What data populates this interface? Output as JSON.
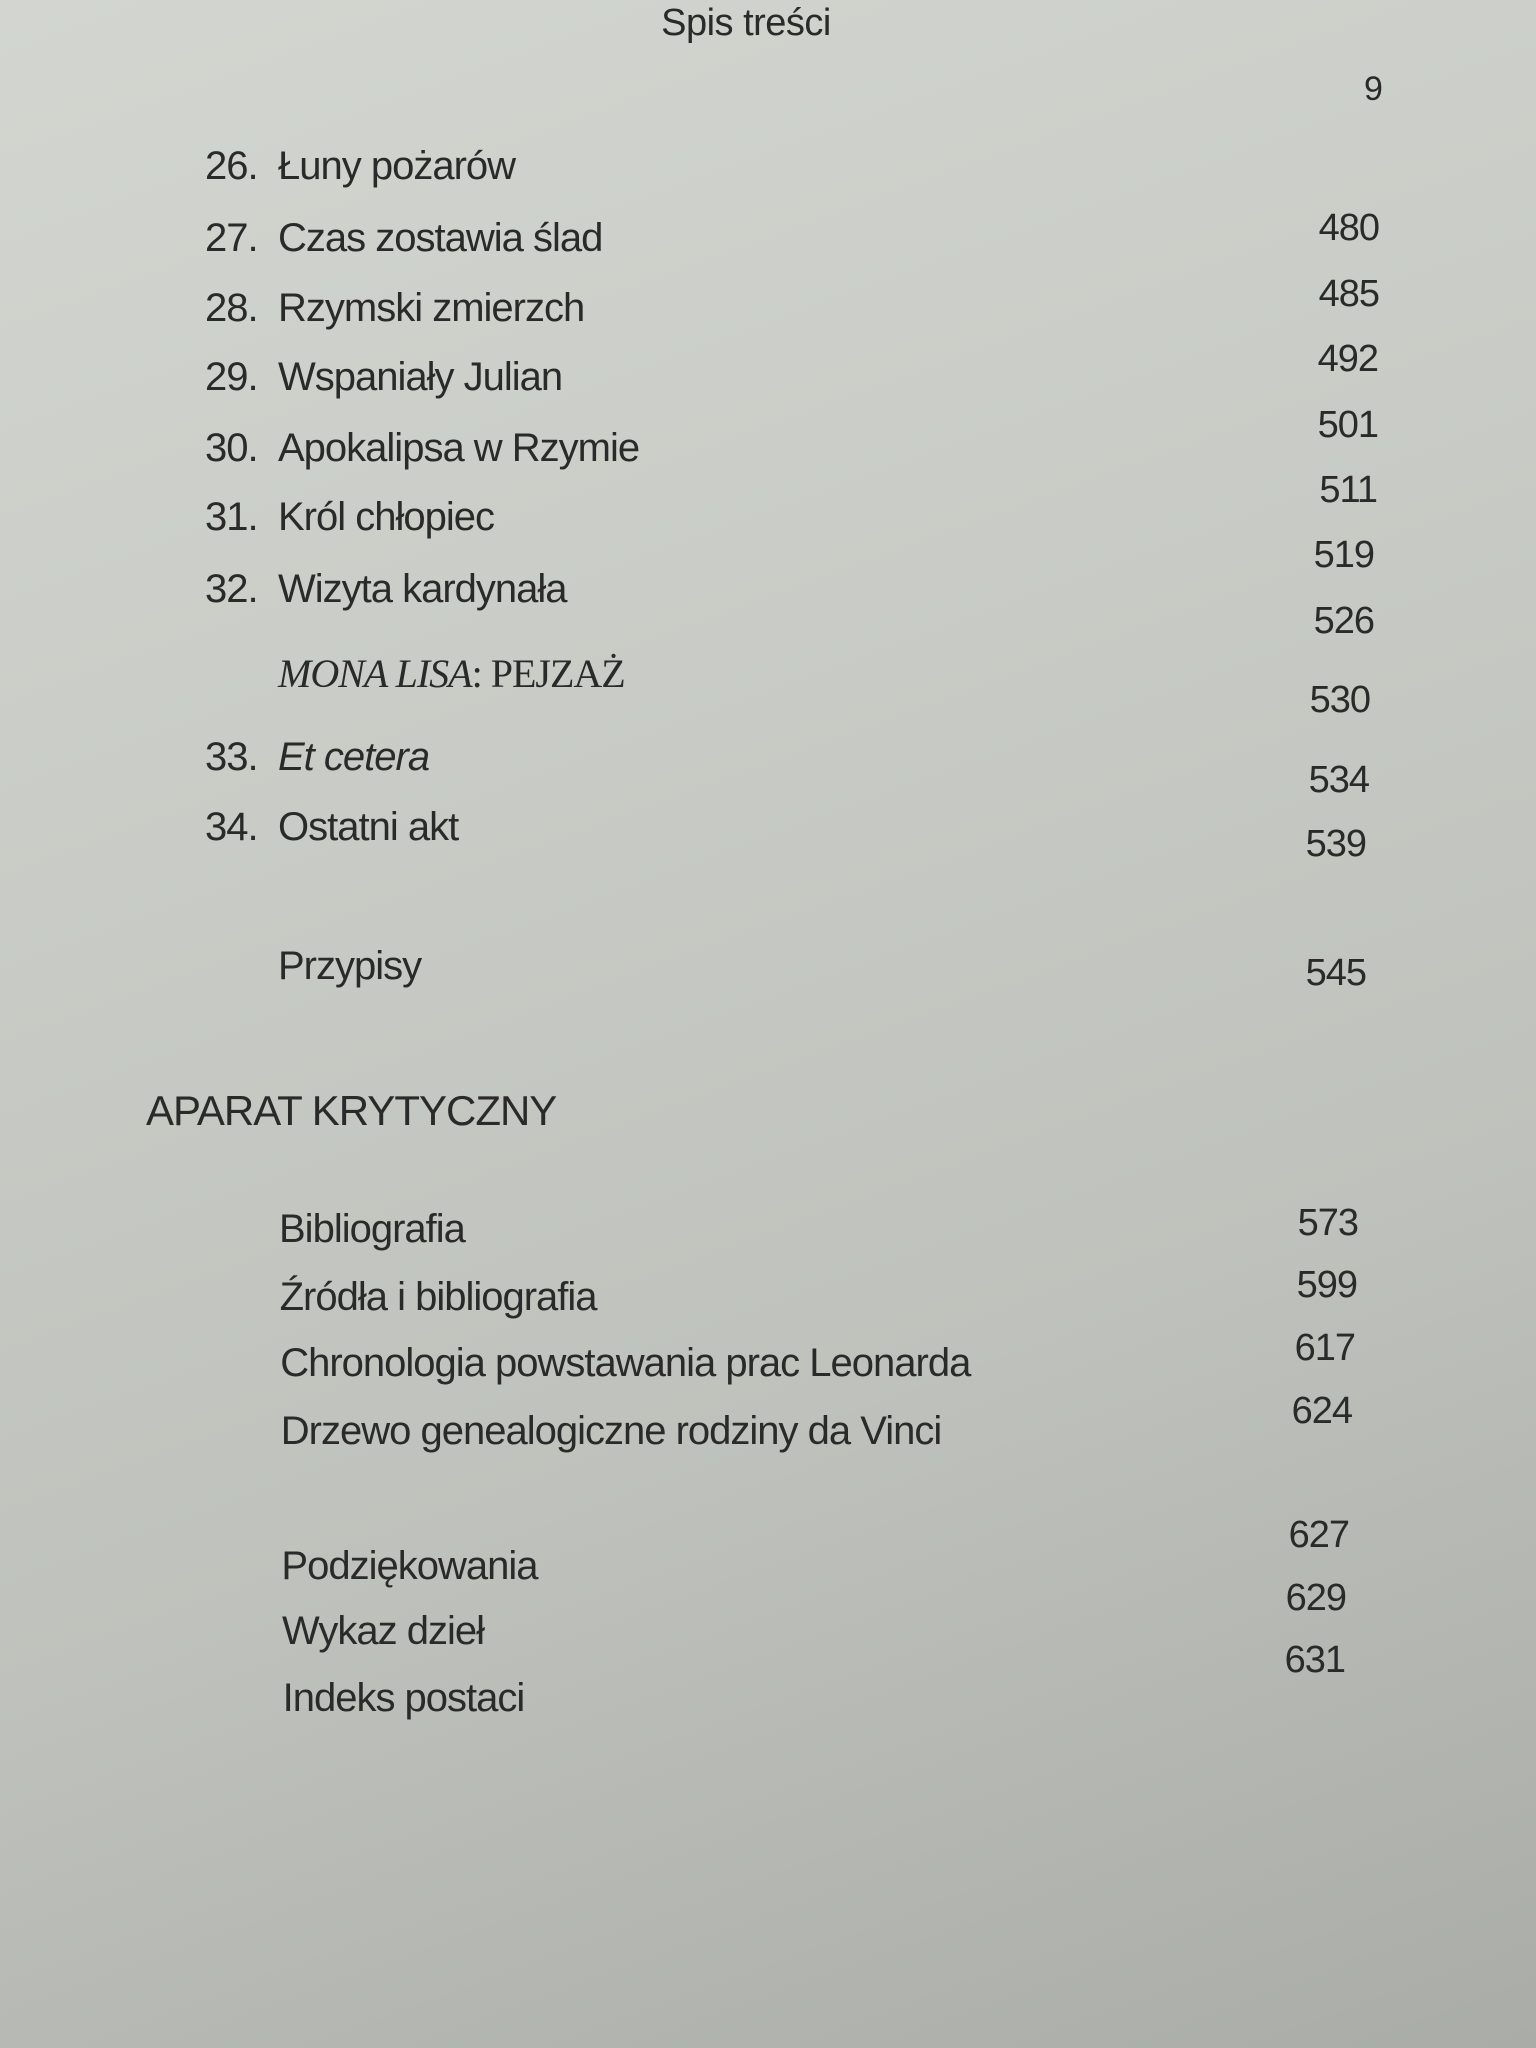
{
  "header": {
    "running_title": "Spis treści",
    "folio": "9"
  },
  "entries": [
    {
      "number": "26.",
      "title": "Łuny pożarów",
      "page": "480"
    },
    {
      "number": "27.",
      "title": "Czas zostawia ślad",
      "page": "485"
    },
    {
      "number": "28.",
      "title": "Rzymski zmierzch",
      "page": "492"
    },
    {
      "number": "29.",
      "title": "Wspaniały Julian",
      "page": "501"
    },
    {
      "number": "30.",
      "title": "Apokalipsa w Rzymie",
      "page": "511"
    },
    {
      "number": "31.",
      "title": "Król chłopiec",
      "page": "519"
    },
    {
      "number": "32.",
      "title": "Wizyta kardynała",
      "page": "526"
    },
    {
      "number": "",
      "title_italic": "MONA LISA",
      "title": ": PEJZAŻ",
      "page": "530"
    },
    {
      "number": "33.",
      "title": "Et cetera",
      "page": "534"
    },
    {
      "number": "34.",
      "title": "Ostatni akt",
      "page": "539"
    },
    {
      "number": "",
      "title": "Przypisy",
      "page": "545"
    }
  ],
  "section": {
    "title": "APARAT KRYTYCZNY"
  },
  "apparatus": [
    {
      "title": "Bibliografia",
      "page": "573"
    },
    {
      "title": "Źródła i bibliografia",
      "page": "599"
    },
    {
      "title": "Chronologia powstawania prac Leonarda",
      "page": "617"
    },
    {
      "title": "Drzewo genealogiczne rodziny da Vinci",
      "page": "624"
    },
    {
      "title": "Podziękowania",
      "page": "627"
    },
    {
      "title": "Wykaz dzieł",
      "page": "629"
    },
    {
      "title": "Indeks postaci",
      "page": "631"
    }
  ]
}
